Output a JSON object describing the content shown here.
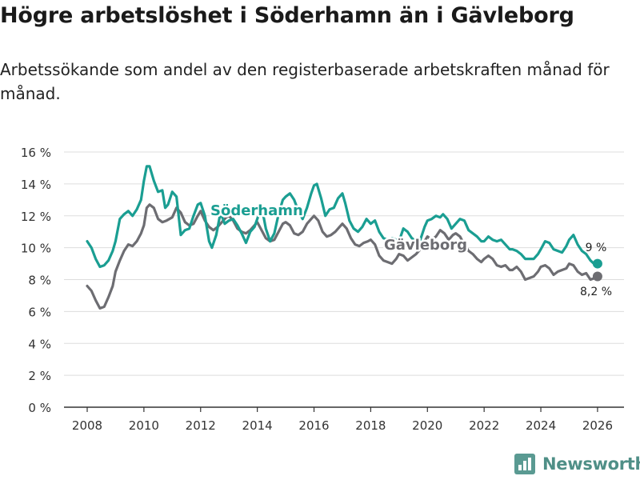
{
  "title": "Högre arbetslöshet i Söderhamn än i Gävleborg",
  "subtitle": "Arbetssökande som andel av den registerbaserade arbetskraften månad för månad.",
  "brand": {
    "name": "Newsworthy",
    "icon": "newsworthy-logo-icon"
  },
  "colors": {
    "soderhamn": "#1a9e92",
    "gavleborg": "#6d6d72",
    "grid": "#dddddd"
  },
  "chart_data": {
    "type": "line",
    "title": "Högre arbetslöshet i Söderhamn än i Gävleborg",
    "xlabel": "",
    "ylabel": "",
    "xlim": [
      2007.5,
      2026.5
    ],
    "ylim": [
      0,
      16
    ],
    "x_ticks": [
      2008,
      2010,
      2012,
      2014,
      2016,
      2018,
      2020,
      2022,
      2024,
      2026
    ],
    "x_tick_labels": [
      "2008",
      "2010",
      "2012",
      "2014",
      "2016",
      "2018",
      "2020",
      "2022",
      "2024",
      "2026"
    ],
    "y_ticks": [
      0,
      2,
      4,
      6,
      8,
      10,
      12,
      14,
      16
    ],
    "y_tick_labels": [
      "0 %",
      "2 %",
      "4 %",
      "6 %",
      "8 %",
      "10 %",
      "12 %",
      "14 %",
      "16 %"
    ],
    "series": [
      {
        "name": "Söderhamn",
        "label": "Söderhamn",
        "end_label": "9 %",
        "end_value": 9.0,
        "points": [
          [
            2008.0,
            10.4
          ],
          [
            2008.15,
            10.0
          ],
          [
            2008.3,
            9.3
          ],
          [
            2008.45,
            8.8
          ],
          [
            2008.6,
            8.9
          ],
          [
            2008.75,
            9.2
          ],
          [
            2008.9,
            9.8
          ],
          [
            2009.0,
            10.4
          ],
          [
            2009.15,
            11.8
          ],
          [
            2009.3,
            12.1
          ],
          [
            2009.45,
            12.3
          ],
          [
            2009.6,
            12.0
          ],
          [
            2009.75,
            12.4
          ],
          [
            2009.9,
            13.0
          ],
          [
            2010.0,
            14.2
          ],
          [
            2010.1,
            15.1
          ],
          [
            2010.2,
            15.1
          ],
          [
            2010.35,
            14.2
          ],
          [
            2010.5,
            13.5
          ],
          [
            2010.65,
            13.6
          ],
          [
            2010.75,
            12.5
          ],
          [
            2010.85,
            12.7
          ],
          [
            2011.0,
            13.5
          ],
          [
            2011.15,
            13.2
          ],
          [
            2011.3,
            10.8
          ],
          [
            2011.45,
            11.1
          ],
          [
            2011.6,
            11.2
          ],
          [
            2011.75,
            12.0
          ],
          [
            2011.9,
            12.7
          ],
          [
            2012.0,
            12.8
          ],
          [
            2012.15,
            12.0
          ],
          [
            2012.3,
            10.4
          ],
          [
            2012.4,
            10.0
          ],
          [
            2012.55,
            10.8
          ],
          [
            2012.7,
            12.2
          ],
          [
            2012.85,
            11.5
          ],
          [
            2013.0,
            11.7
          ],
          [
            2013.15,
            11.8
          ],
          [
            2013.3,
            11.4
          ],
          [
            2013.45,
            10.9
          ],
          [
            2013.6,
            10.3
          ],
          [
            2013.75,
            11.0
          ],
          [
            2013.9,
            11.3
          ],
          [
            2014.0,
            11.8
          ],
          [
            2014.15,
            12.6
          ],
          [
            2014.3,
            11.2
          ],
          [
            2014.45,
            10.4
          ],
          [
            2014.6,
            10.9
          ],
          [
            2014.75,
            12.1
          ],
          [
            2014.9,
            13.0
          ],
          [
            2015.0,
            13.2
          ],
          [
            2015.15,
            13.4
          ],
          [
            2015.3,
            13.0
          ],
          [
            2015.45,
            12.3
          ],
          [
            2015.6,
            11.8
          ],
          [
            2015.75,
            12.5
          ],
          [
            2015.9,
            13.4
          ],
          [
            2016.0,
            13.9
          ],
          [
            2016.1,
            14.0
          ],
          [
            2016.25,
            13.1
          ],
          [
            2016.4,
            12.0
          ],
          [
            2016.55,
            12.4
          ],
          [
            2016.7,
            12.5
          ],
          [
            2016.85,
            13.1
          ],
          [
            2017.0,
            13.4
          ],
          [
            2017.1,
            12.8
          ],
          [
            2017.25,
            11.7
          ],
          [
            2017.4,
            11.2
          ],
          [
            2017.55,
            11.0
          ],
          [
            2017.7,
            11.3
          ],
          [
            2017.85,
            11.8
          ],
          [
            2018.0,
            11.5
          ],
          [
            2018.15,
            11.7
          ],
          [
            2018.3,
            11.0
          ],
          [
            2018.45,
            10.6
          ],
          [
            2018.6,
            10.5
          ],
          [
            2018.75,
            10.6
          ],
          [
            2018.9,
            10.5
          ],
          [
            2019.0,
            10.4
          ],
          [
            2019.15,
            11.2
          ],
          [
            2019.3,
            11.0
          ],
          [
            2019.45,
            10.6
          ],
          [
            2019.6,
            10.4
          ],
          [
            2019.75,
            10.5
          ],
          [
            2019.9,
            11.3
          ],
          [
            2020.0,
            11.7
          ],
          [
            2020.15,
            11.8
          ],
          [
            2020.3,
            12.0
          ],
          [
            2020.45,
            11.9
          ],
          [
            2020.55,
            12.1
          ],
          [
            2020.7,
            11.8
          ],
          [
            2020.85,
            11.2
          ],
          [
            2021.0,
            11.5
          ],
          [
            2021.15,
            11.8
          ],
          [
            2021.3,
            11.7
          ],
          [
            2021.45,
            11.1
          ],
          [
            2021.6,
            10.9
          ],
          [
            2021.75,
            10.7
          ],
          [
            2021.9,
            10.4
          ],
          [
            2022.0,
            10.4
          ],
          [
            2022.15,
            10.7
          ],
          [
            2022.3,
            10.5
          ],
          [
            2022.45,
            10.4
          ],
          [
            2022.6,
            10.5
          ],
          [
            2022.75,
            10.2
          ],
          [
            2022.9,
            9.9
          ],
          [
            2023.0,
            9.9
          ],
          [
            2023.15,
            9.8
          ],
          [
            2023.3,
            9.6
          ],
          [
            2023.45,
            9.3
          ],
          [
            2023.6,
            9.3
          ],
          [
            2023.75,
            9.3
          ],
          [
            2023.9,
            9.6
          ],
          [
            2024.0,
            9.9
          ],
          [
            2024.15,
            10.4
          ],
          [
            2024.3,
            10.3
          ],
          [
            2024.45,
            9.9
          ],
          [
            2024.6,
            9.8
          ],
          [
            2024.75,
            9.7
          ],
          [
            2024.9,
            10.1
          ],
          [
            2025.0,
            10.5
          ],
          [
            2025.15,
            10.8
          ],
          [
            2025.3,
            10.2
          ],
          [
            2025.45,
            9.8
          ],
          [
            2025.6,
            9.6
          ],
          [
            2025.75,
            9.2
          ],
          [
            2025.9,
            8.95
          ],
          [
            2026.0,
            9.0
          ]
        ]
      },
      {
        "name": "Gävleborg",
        "label": "Gävleborg",
        "end_label": "8,2 %",
        "end_value": 8.2,
        "points": [
          [
            2008.0,
            7.6
          ],
          [
            2008.15,
            7.3
          ],
          [
            2008.3,
            6.7
          ],
          [
            2008.45,
            6.2
          ],
          [
            2008.6,
            6.3
          ],
          [
            2008.75,
            6.9
          ],
          [
            2008.9,
            7.6
          ],
          [
            2009.0,
            8.5
          ],
          [
            2009.15,
            9.2
          ],
          [
            2009.3,
            9.8
          ],
          [
            2009.45,
            10.2
          ],
          [
            2009.6,
            10.1
          ],
          [
            2009.75,
            10.4
          ],
          [
            2009.9,
            10.9
          ],
          [
            2010.0,
            11.4
          ],
          [
            2010.1,
            12.5
          ],
          [
            2010.2,
            12.7
          ],
          [
            2010.35,
            12.5
          ],
          [
            2010.5,
            11.8
          ],
          [
            2010.65,
            11.6
          ],
          [
            2010.8,
            11.7
          ],
          [
            2011.0,
            11.9
          ],
          [
            2011.15,
            12.5
          ],
          [
            2011.3,
            12.2
          ],
          [
            2011.45,
            11.6
          ],
          [
            2011.6,
            11.4
          ],
          [
            2011.75,
            11.5
          ],
          [
            2011.9,
            12.0
          ],
          [
            2012.0,
            12.3
          ],
          [
            2012.15,
            11.7
          ],
          [
            2012.3,
            11.3
          ],
          [
            2012.45,
            11.1
          ],
          [
            2012.6,
            11.3
          ],
          [
            2012.75,
            11.6
          ],
          [
            2012.9,
            11.9
          ],
          [
            2013.0,
            12.0
          ],
          [
            2013.15,
            11.7
          ],
          [
            2013.3,
            11.2
          ],
          [
            2013.45,
            11.0
          ],
          [
            2013.6,
            10.9
          ],
          [
            2013.75,
            11.1
          ],
          [
            2013.9,
            11.4
          ],
          [
            2014.0,
            11.6
          ],
          [
            2014.15,
            11.1
          ],
          [
            2014.3,
            10.6
          ],
          [
            2014.45,
            10.4
          ],
          [
            2014.6,
            10.5
          ],
          [
            2014.75,
            11.0
          ],
          [
            2014.9,
            11.5
          ],
          [
            2015.0,
            11.6
          ],
          [
            2015.15,
            11.4
          ],
          [
            2015.3,
            10.9
          ],
          [
            2015.45,
            10.8
          ],
          [
            2015.6,
            11.0
          ],
          [
            2015.75,
            11.5
          ],
          [
            2015.9,
            11.8
          ],
          [
            2016.0,
            12.0
          ],
          [
            2016.15,
            11.7
          ],
          [
            2016.3,
            11.0
          ],
          [
            2016.45,
            10.7
          ],
          [
            2016.6,
            10.8
          ],
          [
            2016.75,
            11.0
          ],
          [
            2016.9,
            11.3
          ],
          [
            2017.0,
            11.5
          ],
          [
            2017.15,
            11.2
          ],
          [
            2017.3,
            10.6
          ],
          [
            2017.45,
            10.2
          ],
          [
            2017.6,
            10.1
          ],
          [
            2017.75,
            10.3
          ],
          [
            2017.9,
            10.4
          ],
          [
            2018.0,
            10.5
          ],
          [
            2018.15,
            10.2
          ],
          [
            2018.3,
            9.5
          ],
          [
            2018.45,
            9.2
          ],
          [
            2018.6,
            9.1
          ],
          [
            2018.75,
            9.0
          ],
          [
            2018.9,
            9.3
          ],
          [
            2019.0,
            9.6
          ],
          [
            2019.15,
            9.5
          ],
          [
            2019.3,
            9.2
          ],
          [
            2019.45,
            9.4
          ],
          [
            2019.6,
            9.6
          ],
          [
            2019.75,
            9.9
          ],
          [
            2019.9,
            10.4
          ],
          [
            2020.0,
            10.7
          ],
          [
            2020.15,
            10.5
          ],
          [
            2020.3,
            10.7
          ],
          [
            2020.45,
            11.1
          ],
          [
            2020.6,
            10.9
          ],
          [
            2020.75,
            10.5
          ],
          [
            2020.9,
            10.8
          ],
          [
            2021.0,
            10.9
          ],
          [
            2021.15,
            10.7
          ],
          [
            2021.3,
            10.2
          ],
          [
            2021.45,
            9.8
          ],
          [
            2021.6,
            9.6
          ],
          [
            2021.75,
            9.3
          ],
          [
            2021.9,
            9.1
          ],
          [
            2022.0,
            9.3
          ],
          [
            2022.15,
            9.5
          ],
          [
            2022.3,
            9.3
          ],
          [
            2022.45,
            8.9
          ],
          [
            2022.6,
            8.8
          ],
          [
            2022.75,
            8.9
          ],
          [
            2022.9,
            8.6
          ],
          [
            2023.0,
            8.6
          ],
          [
            2023.15,
            8.8
          ],
          [
            2023.3,
            8.5
          ],
          [
            2023.45,
            8.0
          ],
          [
            2023.6,
            8.1
          ],
          [
            2023.75,
            8.2
          ],
          [
            2023.9,
            8.5
          ],
          [
            2024.0,
            8.8
          ],
          [
            2024.15,
            8.9
          ],
          [
            2024.3,
            8.7
          ],
          [
            2024.45,
            8.3
          ],
          [
            2024.6,
            8.5
          ],
          [
            2024.75,
            8.6
          ],
          [
            2024.9,
            8.7
          ],
          [
            2025.0,
            9.0
          ],
          [
            2025.15,
            8.9
          ],
          [
            2025.3,
            8.5
          ],
          [
            2025.45,
            8.3
          ],
          [
            2025.6,
            8.4
          ],
          [
            2025.75,
            8.0
          ],
          [
            2025.9,
            8.1
          ],
          [
            2026.0,
            8.2
          ]
        ]
      }
    ]
  }
}
